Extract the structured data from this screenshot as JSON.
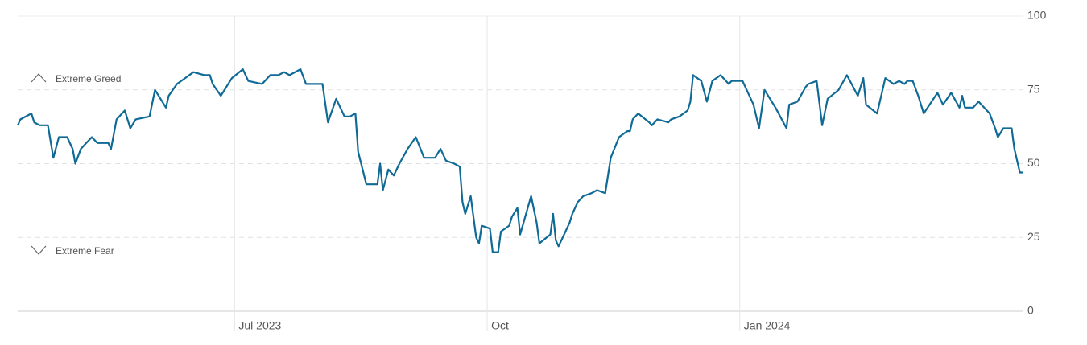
{
  "chart_data": {
    "type": "line",
    "annotations": [
      "Extreme Greed",
      "Extreme Fear"
    ],
    "x": [
      0,
      1,
      5,
      6,
      8,
      11,
      13,
      15,
      18,
      20,
      21,
      23,
      25,
      27,
      29,
      33,
      34,
      36,
      39,
      41,
      43,
      48,
      50,
      54,
      55,
      58,
      61,
      64,
      68,
      70,
      71,
      74,
      78,
      82,
      84,
      89,
      92,
      95,
      97,
      99,
      103,
      105,
      109,
      111,
      113,
      116,
      119,
      121,
      123,
      124,
      127,
      131,
      132,
      133,
      135,
      137,
      139,
      142,
      145,
      148,
      150,
      152,
      154,
      156,
      159,
      161,
      162,
      163,
      165,
      167,
      168,
      169,
      172,
      173,
      175,
      176,
      179,
      180,
      182,
      183,
      187,
      189,
      190,
      194,
      195,
      196,
      197,
      199,
      201,
      202,
      204,
      206,
      209,
      211,
      214,
      216,
      219,
      222,
      223,
      224,
      226,
      230,
      231,
      233,
      237,
      238,
      241,
      244,
      245,
      246,
      249,
      251,
      253,
      256,
      258,
      259,
      260,
      264,
      268,
      270,
      272,
      276,
      280,
      281,
      284,
      287,
      288,
      291,
      293,
      295,
      299,
      302,
      306,
      308,
      309,
      313,
      316,
      319,
      321,
      323,
      324,
      326,
      328,
      330,
      335,
      337,
      340,
      343,
      344,
      345,
      348,
      350,
      354,
      356,
      357,
      359,
      362,
      363,
      365,
      366
    ],
    "series": [
      {
        "color": "#106a96",
        "values": [
          63,
          65,
          67,
          64,
          63,
          63,
          52,
          59,
          59,
          55,
          50,
          55,
          57,
          59,
          57,
          57,
          55,
          65,
          68,
          62,
          65,
          66,
          75,
          69,
          73,
          77,
          79,
          81,
          80,
          80,
          77,
          73,
          79,
          82,
          78,
          77,
          80,
          80,
          81,
          80,
          82,
          77,
          77,
          77,
          64,
          72,
          66,
          66,
          67,
          54,
          43,
          43,
          50,
          41,
          48,
          46,
          50,
          55,
          59,
          52,
          52,
          52,
          55,
          51,
          50,
          49,
          37,
          33,
          39,
          25,
          23,
          29,
          28,
          20,
          20,
          27,
          29,
          32,
          35,
          26,
          39,
          30,
          23,
          26,
          33,
          24,
          22,
          26,
          30,
          33,
          37,
          39,
          40,
          41,
          40,
          52,
          59,
          61,
          61,
          65,
          67,
          64,
          63,
          65,
          64,
          65,
          66,
          68,
          71,
          80,
          78,
          71,
          78,
          80,
          78,
          77,
          78,
          78,
          70,
          62,
          75,
          69,
          62,
          70,
          71,
          76,
          77,
          78,
          63,
          72,
          75,
          80,
          73,
          79,
          70,
          67,
          79,
          77,
          78,
          77,
          78,
          78,
          73,
          67,
          74,
          70,
          74,
          69,
          73,
          69,
          69,
          71,
          67,
          62,
          59,
          62,
          62,
          55,
          47,
          47
        ]
      }
    ],
    "xlim": [
      0,
      366
    ],
    "xticks": [
      {
        "value": 79,
        "label": "Jul 2023"
      },
      {
        "value": 171,
        "label": "Oct"
      },
      {
        "value": 263,
        "label": "Jan 2024"
      }
    ],
    "ylim": [
      0,
      100
    ],
    "yticks": [
      0,
      25,
      50,
      75,
      100
    ],
    "grid": true
  }
}
